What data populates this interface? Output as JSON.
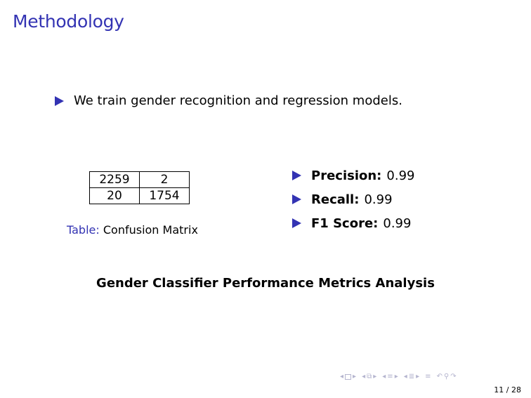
{
  "frame": {
    "title": "Methodology"
  },
  "intro_bullet": "We train gender recognition and regression models.",
  "confusion_matrix": {
    "rows": [
      [
        "2259",
        "2"
      ],
      [
        "20",
        "1754"
      ]
    ],
    "caption_label": "Table:",
    "caption_text": "Confusion Matrix"
  },
  "metrics": [
    {
      "name": "Precision:",
      "value": "0.99"
    },
    {
      "name": "Recall:",
      "value": "0.99"
    },
    {
      "name": "F1 Score:",
      "value": "0.99"
    }
  ],
  "summary": "Gender Classifier Performance Metrics Analysis",
  "footer": {
    "page_number": "11 / 28"
  },
  "colors": {
    "accent": "#3333b3",
    "nav": "#b5b5cf"
  }
}
